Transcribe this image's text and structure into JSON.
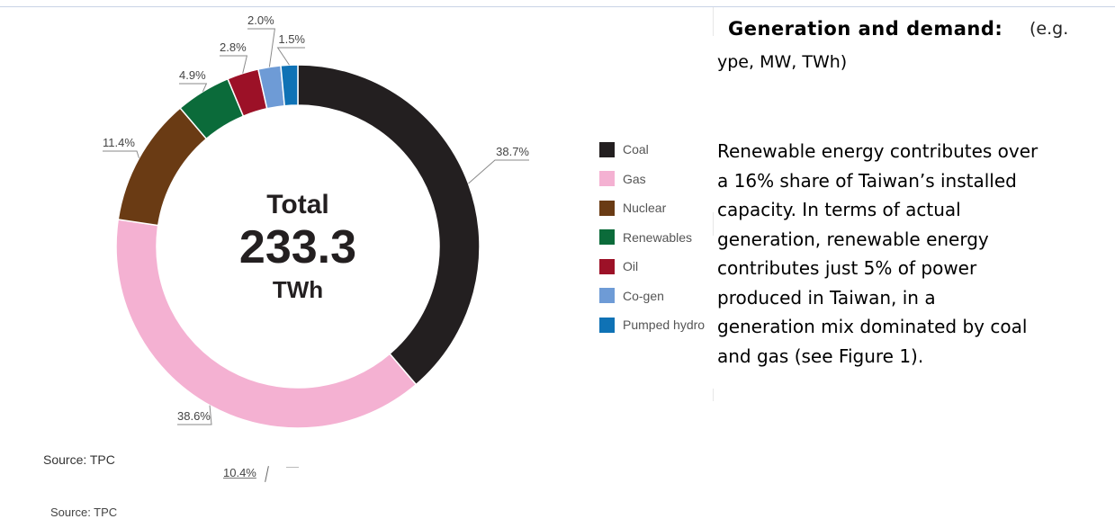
{
  "chart_data": {
    "type": "pie",
    "donut": true,
    "center": {
      "line1": "Total",
      "line2": "233.3",
      "line3": "TWh"
    },
    "slices": [
      {
        "name": "Coal",
        "value": 38.7,
        "label": "38.7%",
        "color": "#231f20"
      },
      {
        "name": "Gas",
        "value": 38.6,
        "label": "38.6%",
        "color": "#f4b1d2"
      },
      {
        "name": "Nuclear",
        "value": 11.4,
        "label": "11.4%",
        "color": "#6a3b14"
      },
      {
        "name": "Renewables",
        "value": 4.9,
        "label": "4.9%",
        "color": "#0b6b3a"
      },
      {
        "name": "Oil",
        "value": 2.8,
        "label": "2.8%",
        "color": "#9c1127"
      },
      {
        "name": "Co-gen",
        "value": 2.0,
        "label": "2.0%",
        "color": "#6e9bd6"
      },
      {
        "name": "Pumped hydro",
        "value": 1.5,
        "label": "1.5%",
        "color": "#0f72b5"
      }
    ],
    "legend": [
      "Coal",
      "Gas",
      "Nuclear",
      "Renewables",
      "Oil",
      "Co-gen",
      "Pumped hydro"
    ],
    "legend_placement": "right",
    "source": "Source: TPC"
  },
  "stray": {
    "label": "10.4%",
    "source": "Source: TPC"
  },
  "text": {
    "heading": "Generation and demand:",
    "heading_note": "(e.g.",
    "line2": "ype, MW, TWh)",
    "paragraph": [
      "Renewable energy contributes over",
      "a 16% share of Taiwan’s installed",
      "capacity. In terms of actual",
      "generation, renewable energy",
      "contributes just 5% of power",
      "produced in Taiwan, in a",
      "generation mix dominated by coal",
      "and gas (see Figure 1)."
    ]
  }
}
